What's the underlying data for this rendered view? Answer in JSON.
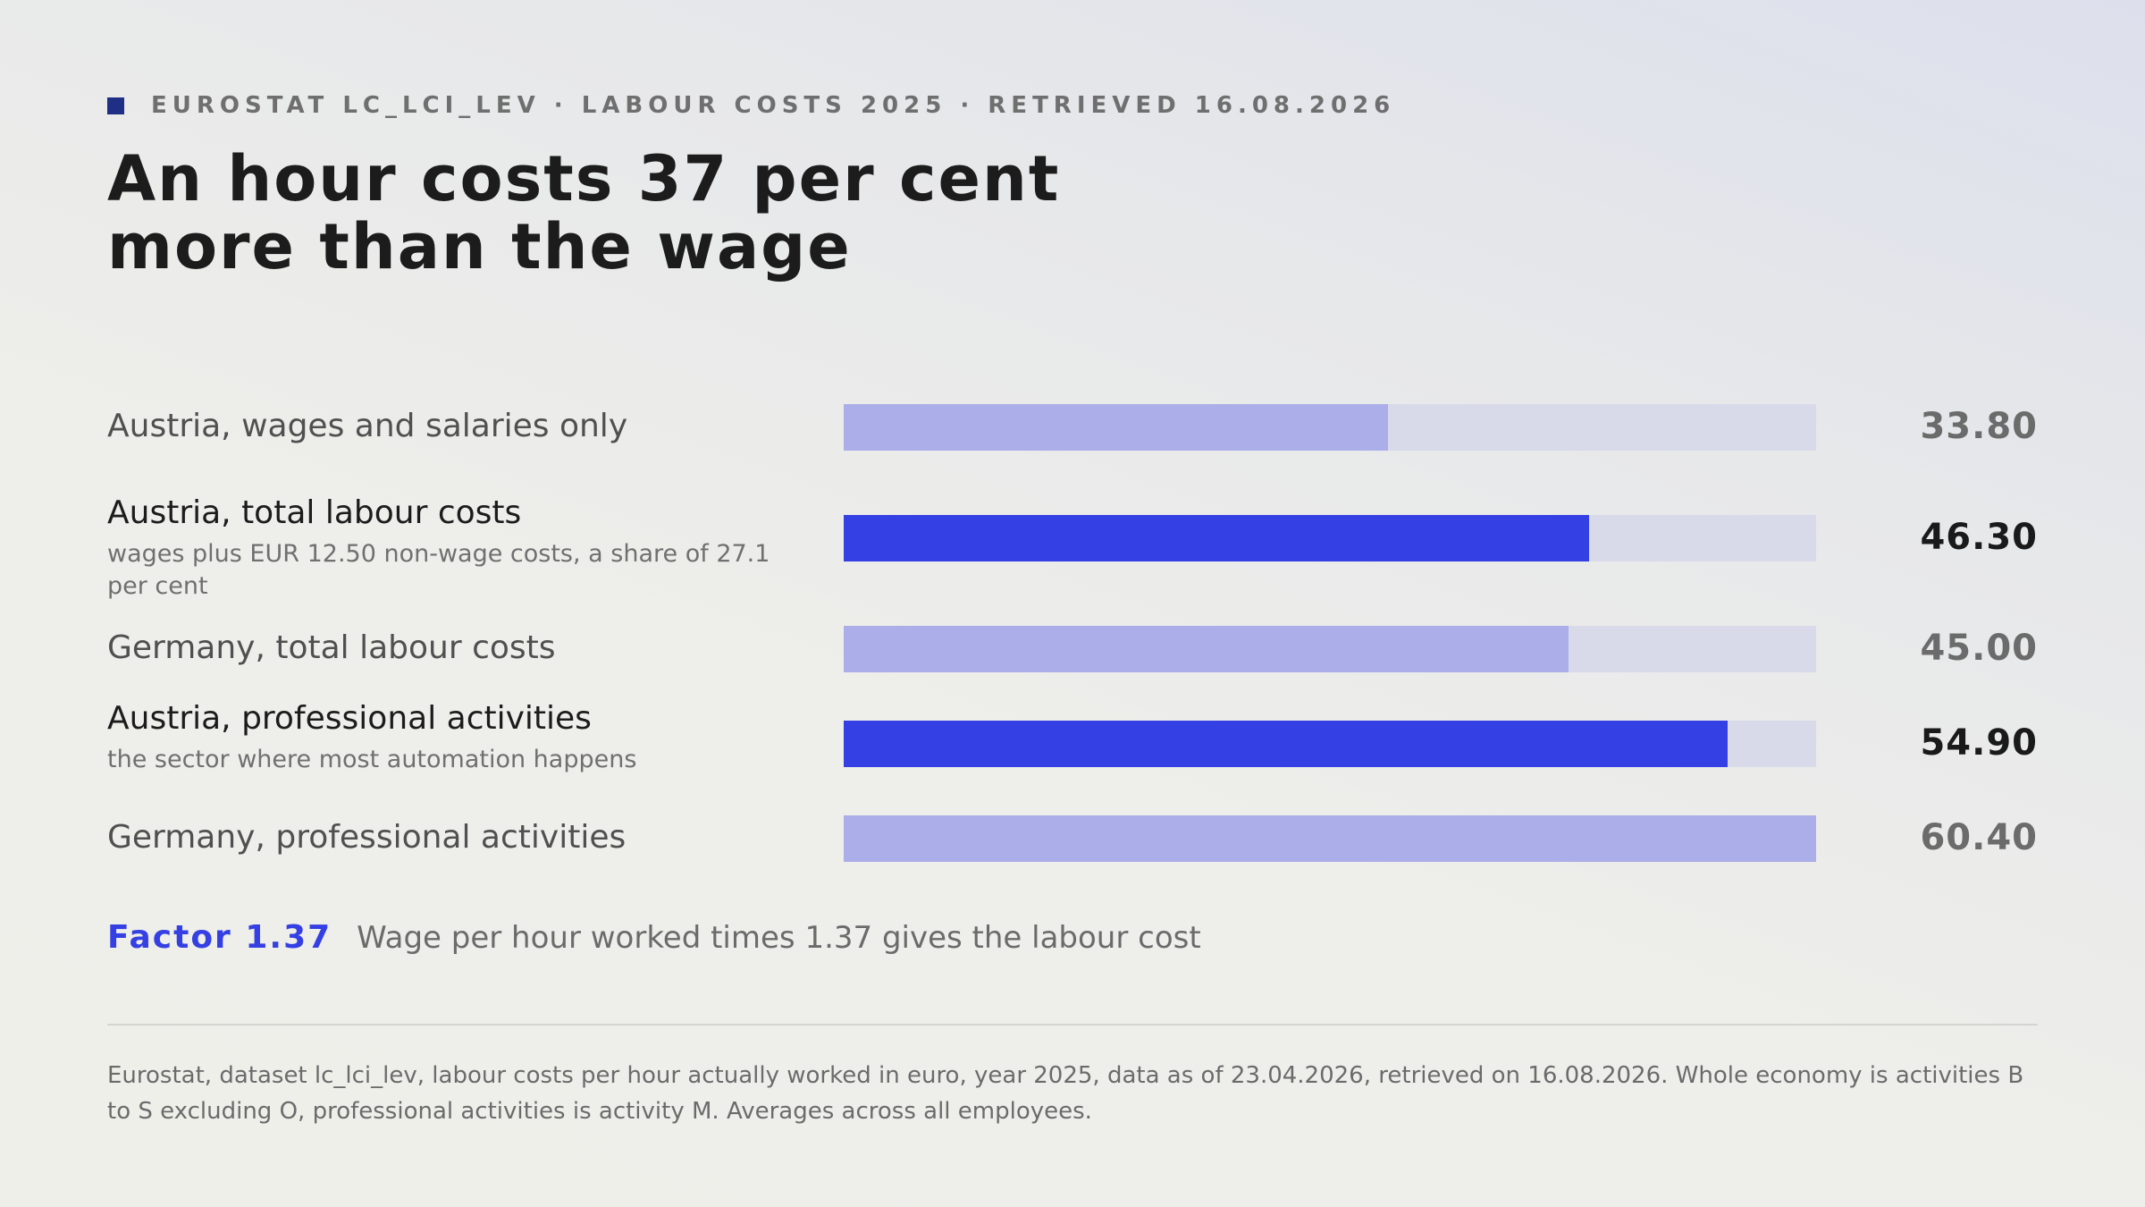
{
  "header": {
    "eyebrow": "EUROSTAT LC_LCI_LEV · LABOUR COSTS 2025 · RETRIEVED 16.08.2026",
    "title_line1": "An hour costs 37 per cent",
    "title_line2": "more than the wage"
  },
  "chart_data": {
    "type": "bar",
    "orientation": "horizontal",
    "categories": [
      "Austria, wages and salaries only",
      "Austria, total labour costs",
      "Germany, total labour costs",
      "Austria, professional activities",
      "Germany, professional activities"
    ],
    "values": [
      33.8,
      46.3,
      45.0,
      54.9,
      60.4
    ],
    "value_labels": [
      "33.80",
      "46.30",
      "45.00",
      "54.90",
      "60.40"
    ],
    "sublabels": [
      "",
      "wages plus EUR 12.50 non-wage costs, a share of 27.1 per cent",
      "",
      "the sector where most automation happens",
      ""
    ],
    "highlighted": [
      false,
      true,
      false,
      true,
      false
    ],
    "xlim": [
      0,
      60.4
    ],
    "grid": false,
    "legend": "none",
    "colors": {
      "highlight": "#3540e4",
      "normal": "#abaee8",
      "track": "#d8dae9"
    }
  },
  "factor": {
    "key": "Factor 1.37",
    "description": "Wage per hour worked times 1.37 gives the labour cost"
  },
  "footnote": "Eurostat, dataset lc_lci_lev, labour costs per hour actually worked in euro, year 2025, data as of 23.04.2026, retrieved on 16.08.2026. Whole economy is activities B to S excluding O, professional activities is activity M. Averages across all employees.",
  "colors": {
    "accent": "#3540e4",
    "eyebrow_mark": "#1f2f86"
  }
}
